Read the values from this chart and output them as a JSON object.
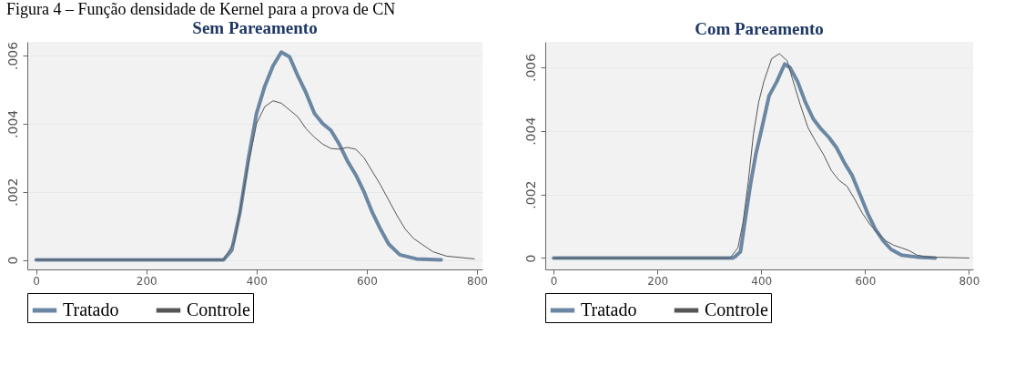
{
  "chart_data": [
    {
      "type": "line",
      "title": "Sem Pareamento",
      "annotations": [
        "Figura 4 – Função densidade de Kernel para a prova de CN"
      ],
      "xlim": [
        -16,
        810
      ],
      "ylim": [
        -0.00028,
        0.0064
      ],
      "xticks": [
        0,
        200,
        400,
        600,
        800
      ],
      "yticks": [
        0,
        {
          "value": 0.002,
          "label": ".002"
        },
        {
          "value": 0.004,
          "label": ".004"
        },
        {
          "value": 0.006,
          "label": ".006"
        }
      ],
      "grid": "y",
      "legend": "bottom",
      "series": [
        {
          "name": "Tratado",
          "color": "#6b87a3",
          "x": [
            0,
            340,
            355,
            370,
            385,
            400,
            415,
            430,
            445,
            460,
            475,
            490,
            505,
            520,
            535,
            550,
            565,
            580,
            595,
            610,
            625,
            640,
            660,
            690,
            735
          ],
          "values": [
            0,
            0,
            0.00028,
            0.0014,
            0.00295,
            0.0043,
            0.0051,
            0.0057,
            0.0061,
            0.00596,
            0.0054,
            0.0049,
            0.0043,
            0.004,
            0.0038,
            0.0034,
            0.0029,
            0.0025,
            0.002,
            0.0014,
            0.0009,
            0.00046,
            0.00015,
            3e-05,
            0
          ]
        },
        {
          "name": "Controle",
          "color": "#555555",
          "x": [
            0,
            340,
            360,
            385,
            400,
            415,
            430,
            445,
            460,
            475,
            490,
            505,
            520,
            535,
            550,
            565,
            580,
            595,
            610,
            625,
            640,
            655,
            670,
            685,
            700,
            720,
            745,
            795
          ],
          "values": [
            0,
            0,
            0.00054,
            0.0028,
            0.004,
            0.0045,
            0.00467,
            0.0046,
            0.0044,
            0.0042,
            0.00385,
            0.0036,
            0.0034,
            0.00327,
            0.00325,
            0.0033,
            0.00325,
            0.003,
            0.0026,
            0.0022,
            0.00175,
            0.0013,
            0.0009,
            0.00063,
            0.00046,
            0.00024,
            0.00011,
            3e-05
          ]
        }
      ]
    },
    {
      "type": "line",
      "title": "Com Pareamento",
      "xlim": [
        -16,
        808
      ],
      "ylim": [
        -0.00036,
        0.0068
      ],
      "xticks": [
        0,
        200,
        400,
        600,
        800
      ],
      "yticks": [
        0,
        {
          "value": 0.002,
          "label": ".002"
        },
        {
          "value": 0.004,
          "label": ".004"
        },
        {
          "value": 0.006,
          "label": ".006"
        }
      ],
      "grid": "y",
      "legend": "bottom",
      "series": [
        {
          "name": "Tratado",
          "color": "#6b87a3",
          "x": [
            0,
            345,
            350,
            360,
            370,
            380,
            390,
            400,
            415,
            430,
            445,
            455,
            470,
            485,
            500,
            515,
            530,
            545,
            560,
            575,
            590,
            605,
            620,
            635,
            650,
            670,
            700,
            735
          ],
          "values": [
            0,
            0,
            5e-05,
            0.0002,
            0.00131,
            0.00239,
            0.0033,
            0.004,
            0.0051,
            0.00555,
            0.0061,
            0.006,
            0.00555,
            0.0049,
            0.00438,
            0.00406,
            0.0038,
            0.00347,
            0.003,
            0.0026,
            0.002,
            0.0014,
            0.0009,
            0.00054,
            0.00027,
            9e-05,
            3e-05,
            0
          ]
        },
        {
          "name": "Controle",
          "color": "#555555",
          "x": [
            0,
            340,
            355,
            365,
            375,
            385,
            395,
            405,
            420,
            435,
            450,
            460,
            475,
            490,
            505,
            520,
            535,
            550,
            565,
            580,
            595,
            610,
            625,
            640,
            655,
            670,
            685,
            700,
            720,
            800
          ],
          "values": [
            0,
            0,
            0.00032,
            0.00113,
            0.0024,
            0.0039,
            0.0049,
            0.00555,
            0.00627,
            0.00643,
            0.0062,
            0.00564,
            0.00483,
            0.0041,
            0.00366,
            0.00325,
            0.00275,
            0.00244,
            0.00226,
            0.00185,
            0.0014,
            0.00104,
            0.00077,
            0.00054,
            0.0004,
            0.00032,
            0.00023,
            9e-05,
            3e-05,
            0
          ]
        }
      ]
    }
  ]
}
